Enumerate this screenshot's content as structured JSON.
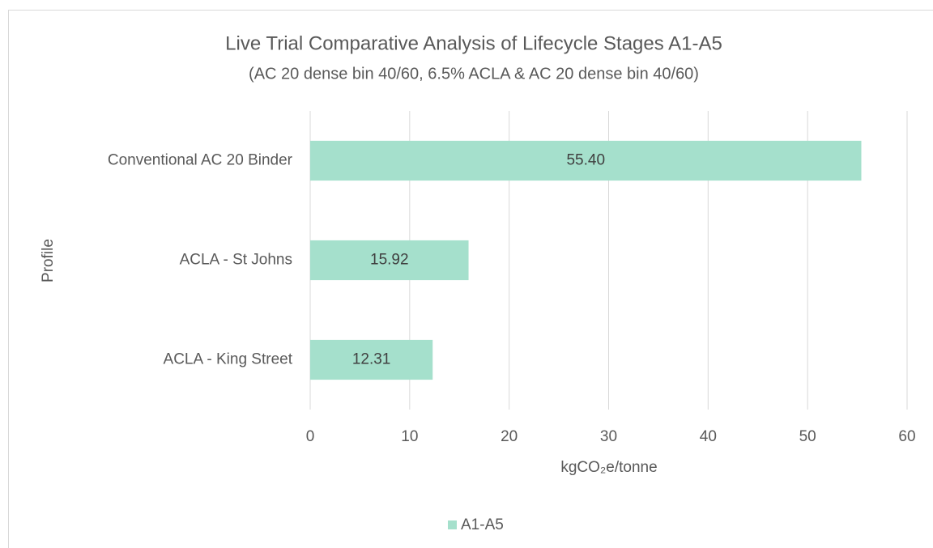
{
  "chart_data": {
    "type": "bar",
    "orientation": "horizontal",
    "title": "Live Trial Comparative Analysis of Lifecycle Stages A1-A5",
    "subtitle": "(AC 20 dense bin 40/60, 6.5% ACLA & AC 20 dense bin 40/60)",
    "x_label": "kgCO₂e/tonne",
    "y_label": "Profile",
    "categories": [
      "Conventional AC 20 Binder",
      "ACLA - St Johns",
      "ACLA - King Street"
    ],
    "series": [
      {
        "name": "A1-A5",
        "color": "#a5e0cc",
        "values": [
          55.4,
          15.92,
          12.31
        ],
        "value_labels": [
          "55.40",
          "15.92",
          "12.31"
        ]
      }
    ],
    "xlim": [
      0,
      60
    ],
    "xticks": [
      0,
      10,
      20,
      30,
      40,
      50,
      60
    ],
    "grid": true,
    "legend": "bottom"
  }
}
